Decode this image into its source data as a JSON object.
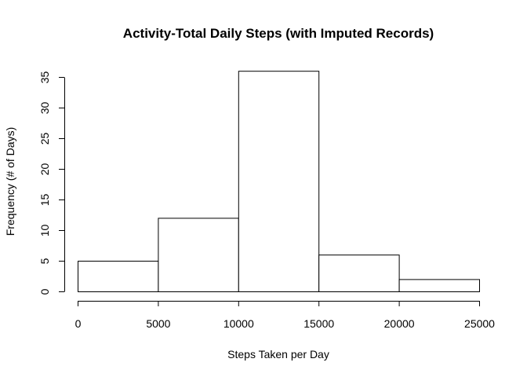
{
  "chart_data": {
    "type": "bar",
    "title": "Activity-Total Daily Steps (with Imputed Records)",
    "xlabel": "Steps Taken per Day",
    "ylabel": "Frequency (# of Days)",
    "bins": [
      {
        "start": 0,
        "end": 5000,
        "count": 5
      },
      {
        "start": 5000,
        "end": 10000,
        "count": 12
      },
      {
        "start": 10000,
        "end": 15000,
        "count": 36
      },
      {
        "start": 15000,
        "end": 20000,
        "count": 6
      },
      {
        "start": 20000,
        "end": 25000,
        "count": 2
      }
    ],
    "x_ticks": [
      0,
      5000,
      10000,
      15000,
      20000,
      25000
    ],
    "x_tick_labels": [
      "0",
      "5000",
      "10000",
      "15000",
      "20000",
      "25000"
    ],
    "y_ticks": [
      0,
      5,
      10,
      15,
      20,
      25,
      30,
      35
    ],
    "y_tick_labels": [
      "0",
      "5",
      "10",
      "15",
      "20",
      "25",
      "30",
      "35"
    ],
    "xlim": [
      0,
      25000
    ],
    "ylim": [
      0,
      35
    ],
    "grid": false,
    "legend": "none"
  }
}
